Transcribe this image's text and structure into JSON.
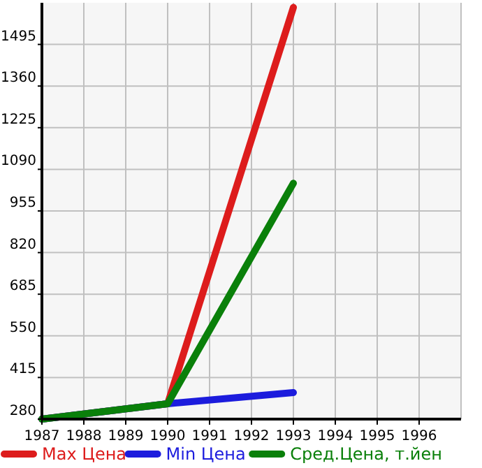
{
  "chart_data": {
    "type": "line",
    "x": [
      1987,
      1990,
      1993
    ],
    "xlim": [
      1987,
      1997
    ],
    "xticks": [
      1987,
      1988,
      1989,
      1990,
      1991,
      1992,
      1993,
      1994,
      1995,
      1996
    ],
    "ylim": [
      280,
      1630
    ],
    "yticks": [
      280,
      415,
      550,
      685,
      820,
      955,
      1090,
      1225,
      1360,
      1495
    ],
    "grid": true,
    "legend": "bottom",
    "marker": "none",
    "line_style": "solid",
    "series": [
      {
        "name": "Max Цена",
        "color": "#dd1c1c",
        "values": [
          280,
          330,
          1615
        ]
      },
      {
        "name": "Min Цена",
        "color": "#1c1cdd",
        "values": [
          280,
          330,
          366
        ]
      },
      {
        "name": "Сред.Цена, т.йен",
        "color": "#0a800a",
        "values": [
          280,
          330,
          1045
        ]
      }
    ]
  }
}
